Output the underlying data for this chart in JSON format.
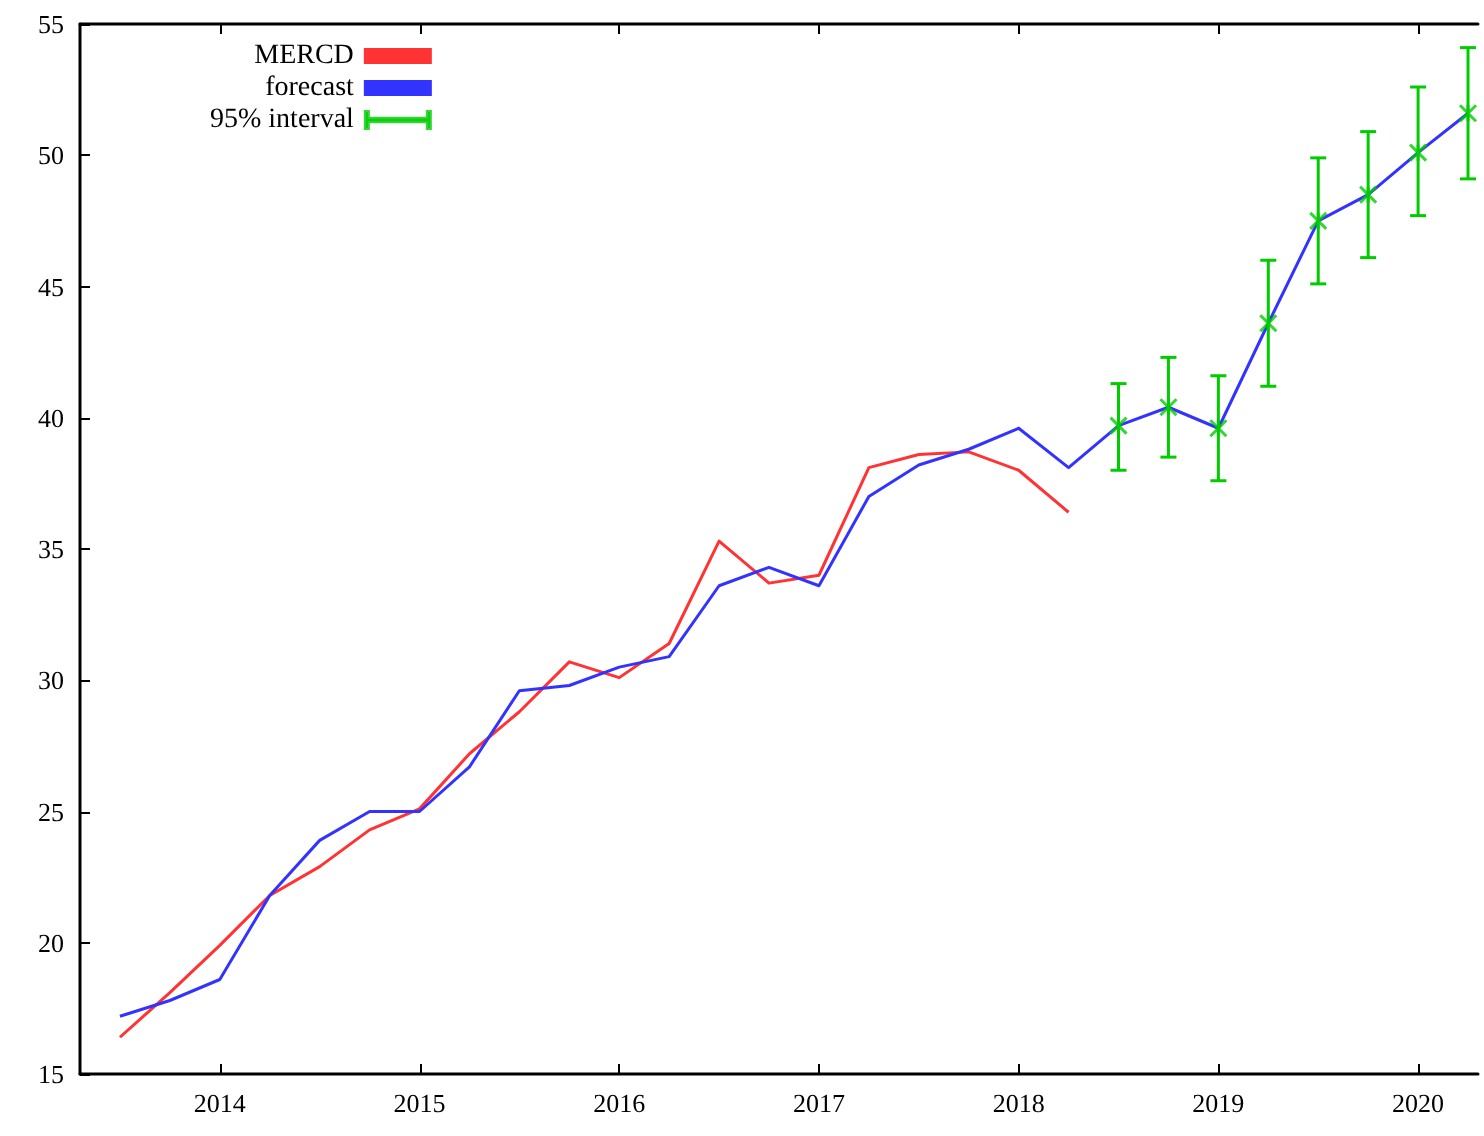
{
  "chart_data": {
    "type": "line",
    "xlim": [
      2013.3,
      2020.3
    ],
    "xticks": [
      2014,
      2015,
      2016,
      2017,
      2018,
      2019,
      2020
    ],
    "ylim": [
      15,
      55
    ],
    "yticks": [
      15,
      20,
      25,
      30,
      35,
      40,
      45,
      50,
      55
    ],
    "grid": false,
    "legend": "top left",
    "marker": "none",
    "line_style": "solid",
    "series": [
      {
        "name": "MERCD",
        "color": "#ff3333",
        "x": [
          2013.5,
          2013.75,
          2014,
          2014.25,
          2014.5,
          2014.75,
          2015,
          2015.25,
          2015.5,
          2015.75,
          2016,
          2016.25,
          2016.5,
          2016.75,
          2017,
          2017.25,
          2017.5,
          2017.75,
          2018,
          2018.25
        ],
        "values": [
          16.4,
          18.1,
          19.9,
          21.8,
          22.9,
          24.3,
          25.1,
          27.2,
          28.8,
          30.7,
          30.1,
          31.4,
          35.3,
          33.7,
          34.0,
          38.1,
          38.6,
          38.7,
          38.0,
          36.4
        ]
      },
      {
        "name": "forecast",
        "color": "#3333ff",
        "x": [
          2013.5,
          2013.75,
          2014,
          2014.25,
          2014.5,
          2014.75,
          2015,
          2015.25,
          2015.5,
          2015.75,
          2016,
          2016.25,
          2016.5,
          2016.75,
          2017,
          2017.25,
          2017.5,
          2017.75,
          2018,
          2018.25,
          2018.5,
          2018.75,
          2019,
          2019.25,
          2019.5,
          2019.75,
          2020,
          2020.25
        ],
        "values": [
          17.2,
          17.8,
          18.6,
          21.8,
          23.9,
          25.0,
          25.0,
          26.7,
          29.6,
          29.8,
          30.5,
          30.9,
          33.6,
          34.3,
          33.6,
          37.0,
          38.2,
          38.8,
          39.6,
          38.1,
          39.7,
          40.4,
          39.6,
          43.6,
          47.5,
          48.5,
          50.1,
          51.6
        ]
      },
      {
        "name": "95% interval",
        "type": "scatter",
        "color": "#00cc00",
        "marker": "cross",
        "x": [
          2018.5,
          2018.75,
          2019,
          2019.25,
          2019.5,
          2019.75,
          2020,
          2020.25
        ],
        "values": [
          39.7,
          40.4,
          39.6,
          43.6,
          47.5,
          48.5,
          50.1,
          51.6
        ],
        "errors": [
          [
            38.0,
            41.3
          ],
          [
            38.5,
            42.3
          ],
          [
            37.6,
            41.6
          ],
          [
            41.2,
            46.0
          ],
          [
            45.1,
            49.9
          ],
          [
            46.1,
            50.9
          ],
          [
            47.7,
            52.6
          ],
          [
            49.1,
            54.1
          ]
        ]
      }
    ]
  }
}
